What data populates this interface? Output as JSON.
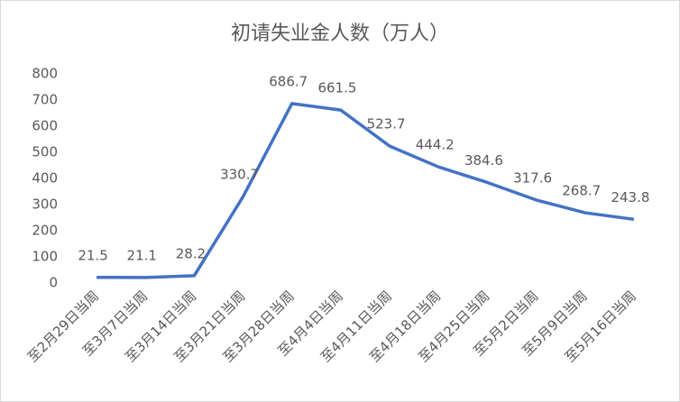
{
  "chart_data": {
    "type": "line",
    "title": "初请失业金人数（万人）",
    "categories": [
      "至2月29日当周",
      "至3月7日当周",
      "至3月14日当周",
      "至3月21日当周",
      "至3月28日当周",
      "至4月4日当周",
      "至4月11日当周",
      "至4月18日当周",
      "至4月25日当周",
      "至5月2日当周",
      "至5月9日当周",
      "至5月16日当周"
    ],
    "values": [
      21.5,
      21.1,
      28.2,
      330.7,
      686.7,
      661.5,
      523.7,
      444.2,
      384.6,
      317.6,
      268.7,
      243.8
    ],
    "color": "#4472c4",
    "ylim": [
      0,
      800
    ],
    "yticks": [
      0,
      100,
      200,
      300,
      400,
      500,
      600,
      700,
      800
    ],
    "grid": false
  }
}
